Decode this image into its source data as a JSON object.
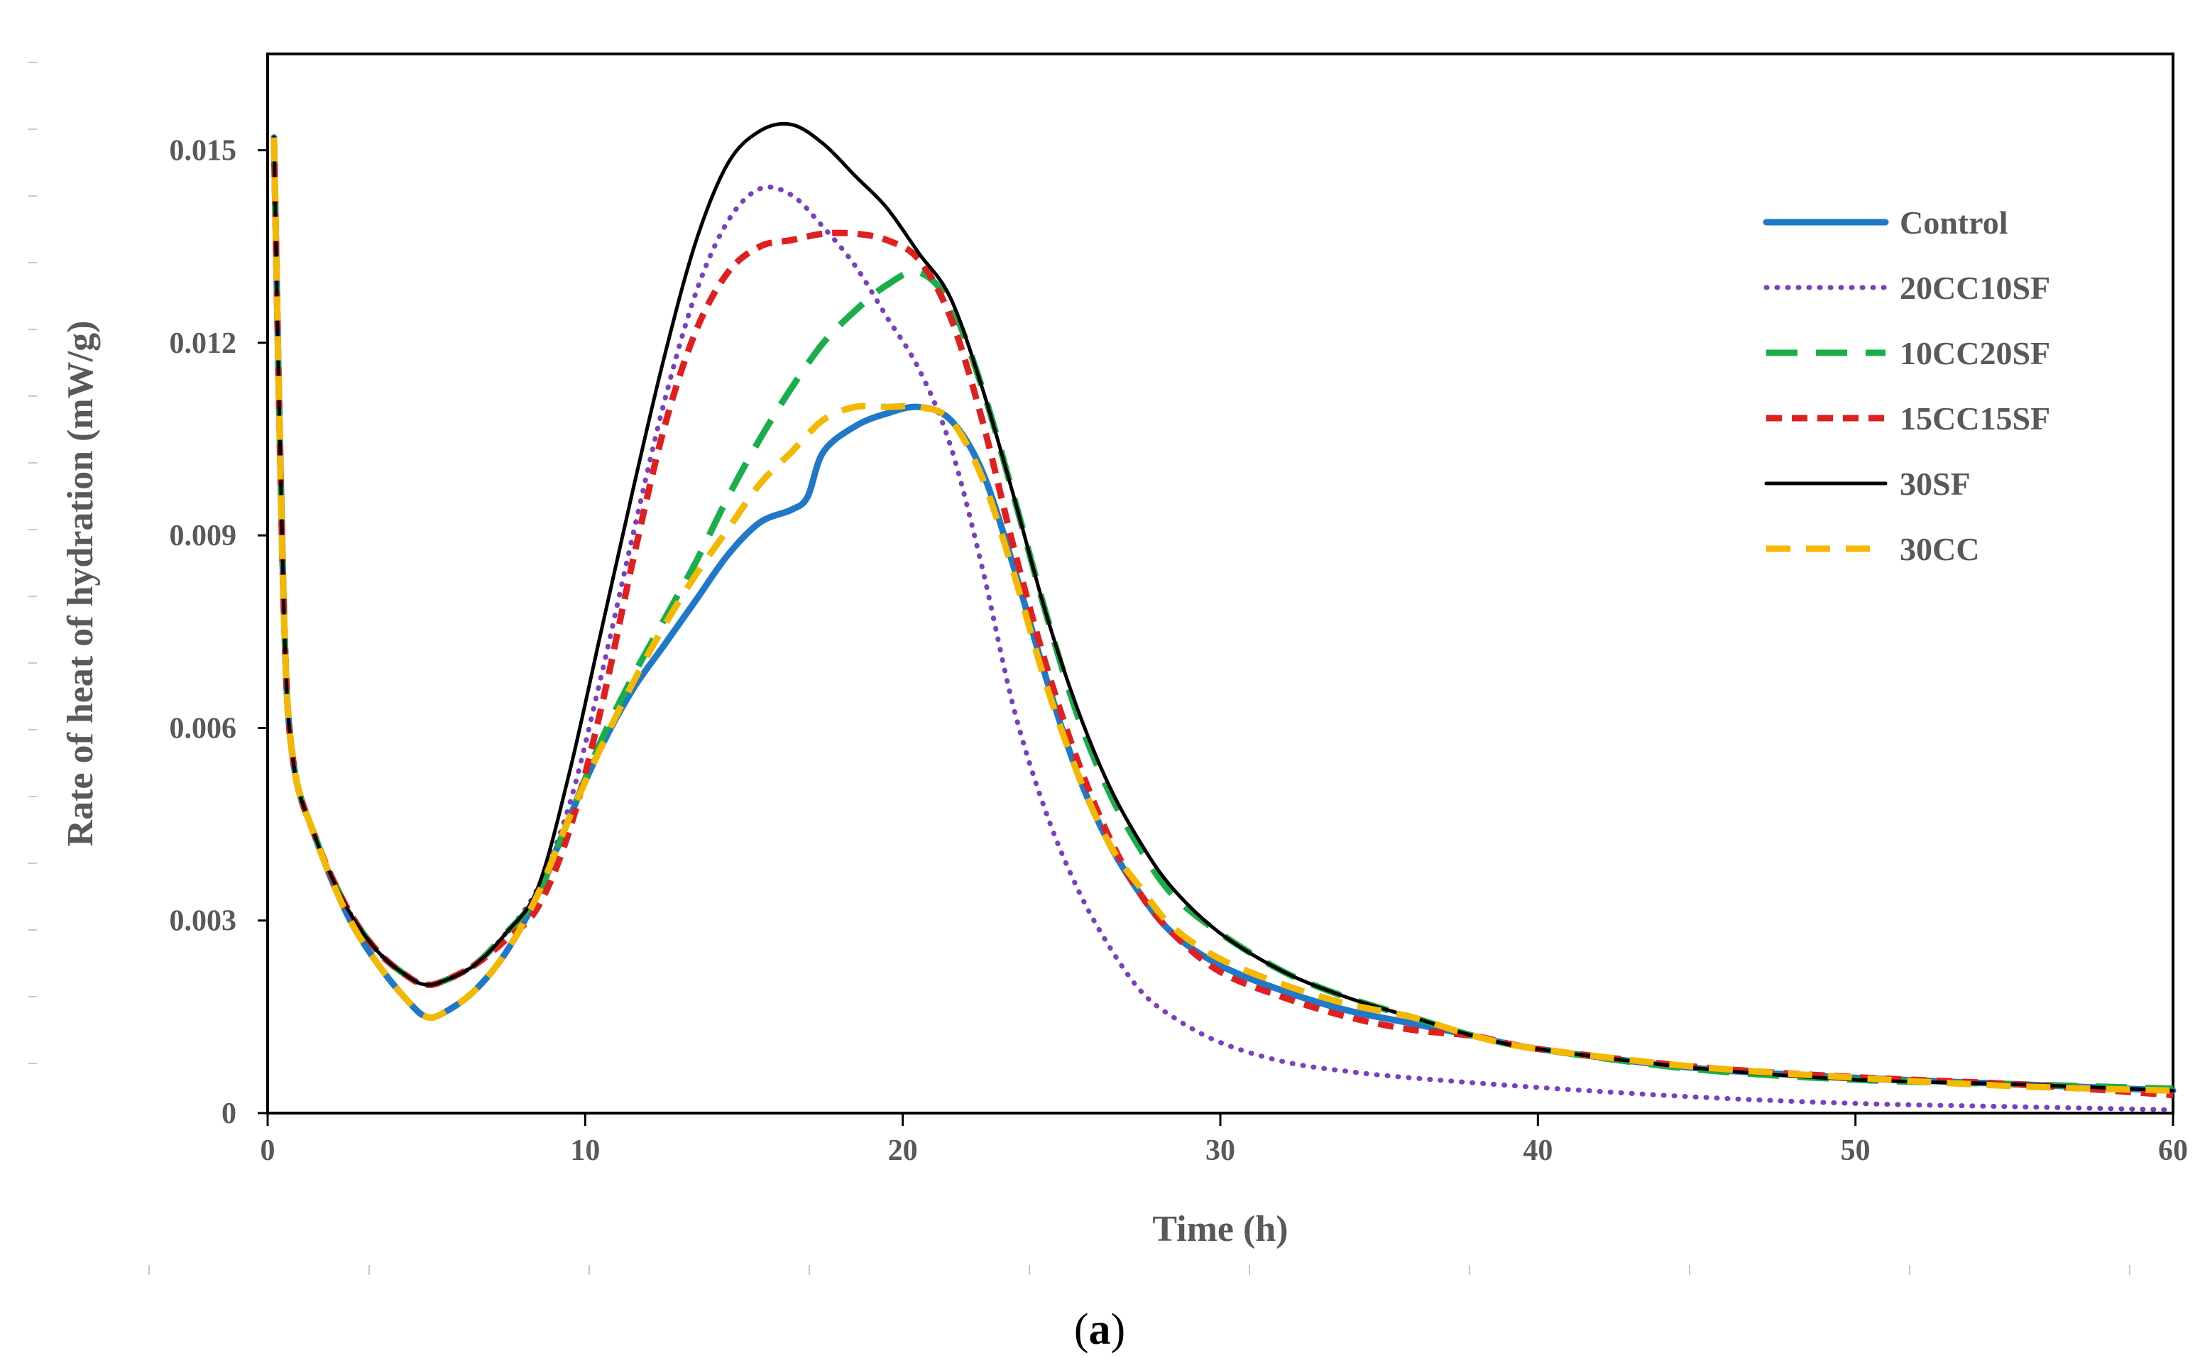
{
  "chart_data": {
    "type": "line",
    "title": "",
    "xlabel": "Time (h)",
    "ylabel": "Rate of heat of hydration (mW/g)",
    "xlim": [
      0,
      60
    ],
    "ylim": [
      0,
      0.0165
    ],
    "xticks": [
      "0",
      "10",
      "20",
      "30",
      "40",
      "50",
      "60"
    ],
    "yticks": [
      "0",
      "0.003",
      "0.006",
      "0.009",
      "0.012",
      "0.015"
    ],
    "caption": "(a)",
    "caption_parts": {
      "open": "(",
      "letter": "a",
      "close": ")"
    },
    "legend_position": "top-right",
    "grid": false,
    "series": [
      {
        "name": "Control",
        "color": "#1F78C8",
        "style": "solid-thick",
        "points": [
          [
            0.2,
            0.0152
          ],
          [
            0.5,
            0.008
          ],
          [
            0.8,
            0.0055
          ],
          [
            1.5,
            0.0043
          ],
          [
            2.5,
            0.0031
          ],
          [
            3.5,
            0.0023
          ],
          [
            4.5,
            0.0017
          ],
          [
            5,
            0.0015
          ],
          [
            5.5,
            0.00155
          ],
          [
            6.5,
            0.0019
          ],
          [
            7.5,
            0.0025
          ],
          [
            8.5,
            0.0034
          ],
          [
            9.5,
            0.0046
          ],
          [
            10.5,
            0.0057
          ],
          [
            11.5,
            0.0066
          ],
          [
            12.5,
            0.0073
          ],
          [
            13.5,
            0.008
          ],
          [
            14.5,
            0.0087
          ],
          [
            15.5,
            0.0092
          ],
          [
            16.5,
            0.0094
          ],
          [
            17,
            0.0096
          ],
          [
            17.5,
            0.0103
          ],
          [
            18.5,
            0.0107
          ],
          [
            19.5,
            0.0109
          ],
          [
            20.5,
            0.011
          ],
          [
            21.5,
            0.0108
          ],
          [
            22.5,
            0.01
          ],
          [
            23.5,
            0.0085
          ],
          [
            24.5,
            0.0068
          ],
          [
            25.5,
            0.0053
          ],
          [
            26.5,
            0.0042
          ],
          [
            27.5,
            0.0034
          ],
          [
            28.5,
            0.0028
          ],
          [
            30,
            0.0023
          ],
          [
            32,
            0.0019
          ],
          [
            34,
            0.0016
          ],
          [
            36,
            0.0014
          ],
          [
            38,
            0.0012
          ],
          [
            40,
            0.001
          ],
          [
            45,
            0.0007
          ],
          [
            50,
            0.00055
          ],
          [
            55,
            0.00045
          ],
          [
            60,
            0.00035
          ]
        ]
      },
      {
        "name": "20CC10SF",
        "color": "#7B3FBF",
        "style": "dotted",
        "points": [
          [
            0.2,
            0.0152
          ],
          [
            0.5,
            0.008
          ],
          [
            0.8,
            0.0055
          ],
          [
            1.5,
            0.0043
          ],
          [
            2.5,
            0.0032
          ],
          [
            3.5,
            0.0025
          ],
          [
            4.5,
            0.0021
          ],
          [
            5,
            0.002
          ],
          [
            5.5,
            0.00205
          ],
          [
            6.5,
            0.0023
          ],
          [
            7.5,
            0.0028
          ],
          [
            8.5,
            0.0035
          ],
          [
            9.5,
            0.0048
          ],
          [
            10.5,
            0.0068
          ],
          [
            11.5,
            0.009
          ],
          [
            12.5,
            0.0111
          ],
          [
            13.5,
            0.0128
          ],
          [
            14.5,
            0.0139
          ],
          [
            15.5,
            0.0144
          ],
          [
            16.5,
            0.0143
          ],
          [
            17.5,
            0.0138
          ],
          [
            18.5,
            0.0132
          ],
          [
            19.5,
            0.0124
          ],
          [
            20.5,
            0.0116
          ],
          [
            21.5,
            0.0104
          ],
          [
            22.5,
            0.0085
          ],
          [
            23.5,
            0.0063
          ],
          [
            24.5,
            0.0047
          ],
          [
            25.5,
            0.0035
          ],
          [
            26.5,
            0.0026
          ],
          [
            27.5,
            0.0019
          ],
          [
            28.5,
            0.0015
          ],
          [
            30,
            0.0011
          ],
          [
            32,
            0.0008
          ],
          [
            34,
            0.00065
          ],
          [
            36,
            0.00055
          ],
          [
            40,
            0.0004
          ],
          [
            45,
            0.00025
          ],
          [
            50,
            0.00015
          ],
          [
            55,
            0.0001
          ],
          [
            60,
            5e-05
          ]
        ]
      },
      {
        "name": "10CC20SF",
        "color": "#1AAE4B",
        "style": "long-dash",
        "points": [
          [
            0.2,
            0.0152
          ],
          [
            0.5,
            0.008
          ],
          [
            0.8,
            0.0055
          ],
          [
            1.5,
            0.0043
          ],
          [
            2.5,
            0.0032
          ],
          [
            3.5,
            0.0025
          ],
          [
            4.5,
            0.0021
          ],
          [
            5,
            0.002
          ],
          [
            5.5,
            0.00205
          ],
          [
            6.5,
            0.0023
          ],
          [
            7.5,
            0.0028
          ],
          [
            8.5,
            0.0034
          ],
          [
            9.5,
            0.0046
          ],
          [
            10.5,
            0.0058
          ],
          [
            11.5,
            0.0068
          ],
          [
            12.5,
            0.0077
          ],
          [
            13.5,
            0.0086
          ],
          [
            14.5,
            0.0096
          ],
          [
            15.5,
            0.0105
          ],
          [
            16.5,
            0.0113
          ],
          [
            17.5,
            0.012
          ],
          [
            18.5,
            0.0125
          ],
          [
            19.5,
            0.0129
          ],
          [
            20.5,
            0.0131
          ],
          [
            21.5,
            0.0126
          ],
          [
            22.5,
            0.0113
          ],
          [
            23.5,
            0.0096
          ],
          [
            24.5,
            0.0078
          ],
          [
            25.5,
            0.0062
          ],
          [
            26.5,
            0.005
          ],
          [
            27.5,
            0.0041
          ],
          [
            28.5,
            0.0034
          ],
          [
            30,
            0.0028
          ],
          [
            32,
            0.0022
          ],
          [
            34,
            0.0018
          ],
          [
            36,
            0.0015
          ],
          [
            38,
            0.0012
          ],
          [
            40,
            0.001
          ],
          [
            45,
            0.00068
          ],
          [
            50,
            0.00052
          ],
          [
            55,
            0.00045
          ],
          [
            60,
            0.00038
          ]
        ]
      },
      {
        "name": "15CC15SF",
        "color": "#E02020",
        "style": "short-dash",
        "points": [
          [
            0.2,
            0.0152
          ],
          [
            0.5,
            0.008
          ],
          [
            0.8,
            0.0055
          ],
          [
            1.5,
            0.0043
          ],
          [
            2.5,
            0.0032
          ],
          [
            3.5,
            0.0025
          ],
          [
            4.5,
            0.0021
          ],
          [
            5,
            0.002
          ],
          [
            5.5,
            0.00205
          ],
          [
            6.5,
            0.0023
          ],
          [
            7.5,
            0.0027
          ],
          [
            8.5,
            0.0032
          ],
          [
            9.5,
            0.0044
          ],
          [
            10.5,
            0.0063
          ],
          [
            11.5,
            0.0086
          ],
          [
            12.5,
            0.0107
          ],
          [
            13.5,
            0.0122
          ],
          [
            14.5,
            0.0131
          ],
          [
            15.5,
            0.0135
          ],
          [
            16.5,
            0.0136
          ],
          [
            17.5,
            0.0137
          ],
          [
            18.5,
            0.0137
          ],
          [
            19.5,
            0.0136
          ],
          [
            20.5,
            0.0133
          ],
          [
            21.5,
            0.0124
          ],
          [
            22.5,
            0.0108
          ],
          [
            23.5,
            0.0088
          ],
          [
            24.5,
            0.007
          ],
          [
            25.5,
            0.0055
          ],
          [
            26.5,
            0.0043
          ],
          [
            27.5,
            0.0034
          ],
          [
            28.5,
            0.0028
          ],
          [
            30,
            0.0022
          ],
          [
            32,
            0.0018
          ],
          [
            34,
            0.0015
          ],
          [
            36,
            0.0013
          ],
          [
            38,
            0.0012
          ],
          [
            40,
            0.001
          ],
          [
            45,
            0.00072
          ],
          [
            50,
            0.00056
          ],
          [
            55,
            0.00045
          ],
          [
            60,
            0.00028
          ]
        ]
      },
      {
        "name": "30SF",
        "color": "#000000",
        "style": "solid-thin",
        "points": [
          [
            0.2,
            0.0152
          ],
          [
            0.5,
            0.008
          ],
          [
            0.8,
            0.0055
          ],
          [
            1.5,
            0.0043
          ],
          [
            2.5,
            0.0032
          ],
          [
            3.5,
            0.0025
          ],
          [
            4.5,
            0.0021
          ],
          [
            5,
            0.002
          ],
          [
            5.5,
            0.00205
          ],
          [
            6.5,
            0.0023
          ],
          [
            7.5,
            0.0028
          ],
          [
            8.5,
            0.0035
          ],
          [
            9.5,
            0.0053
          ],
          [
            10.5,
            0.0075
          ],
          [
            11.5,
            0.0097
          ],
          [
            12.5,
            0.0118
          ],
          [
            13.5,
            0.0136
          ],
          [
            14.5,
            0.0148
          ],
          [
            15.5,
            0.0153
          ],
          [
            16.5,
            0.0154
          ],
          [
            17.5,
            0.0151
          ],
          [
            18.5,
            0.0146
          ],
          [
            19.5,
            0.0141
          ],
          [
            20.5,
            0.0134
          ],
          [
            21.5,
            0.0127
          ],
          [
            22.5,
            0.0113
          ],
          [
            23.5,
            0.0096
          ],
          [
            24.5,
            0.0078
          ],
          [
            25.5,
            0.0063
          ],
          [
            26.5,
            0.0051
          ],
          [
            27.5,
            0.0042
          ],
          [
            28.5,
            0.0035
          ],
          [
            30,
            0.0028
          ],
          [
            32,
            0.0022
          ],
          [
            34,
            0.0018
          ],
          [
            36,
            0.0015
          ],
          [
            38,
            0.0012
          ],
          [
            40,
            0.001
          ],
          [
            45,
            0.0007
          ],
          [
            50,
            0.00052
          ],
          [
            55,
            0.00045
          ],
          [
            60,
            0.00035
          ]
        ]
      },
      {
        "name": "30CC",
        "color": "#F5B800",
        "style": "dash",
        "points": [
          [
            0.2,
            0.0152
          ],
          [
            0.5,
            0.008
          ],
          [
            0.8,
            0.0055
          ],
          [
            1.5,
            0.0043
          ],
          [
            2.5,
            0.0031
          ],
          [
            3.5,
            0.0023
          ],
          [
            4.5,
            0.0017
          ],
          [
            5,
            0.0015
          ],
          [
            5.5,
            0.00155
          ],
          [
            6.5,
            0.0019
          ],
          [
            7.5,
            0.0025
          ],
          [
            8.5,
            0.0034
          ],
          [
            9.5,
            0.0046
          ],
          [
            10.5,
            0.0057
          ],
          [
            11.5,
            0.0067
          ],
          [
            12.5,
            0.0076
          ],
          [
            13.5,
            0.0084
          ],
          [
            14.5,
            0.0091
          ],
          [
            15.5,
            0.0098
          ],
          [
            16.5,
            0.0103
          ],
          [
            17.5,
            0.0108
          ],
          [
            18.5,
            0.011
          ],
          [
            19.5,
            0.011
          ],
          [
            20.5,
            0.011
          ],
          [
            21.5,
            0.0108
          ],
          [
            22.5,
            0.0099
          ],
          [
            23.5,
            0.0084
          ],
          [
            24.5,
            0.0067
          ],
          [
            25.5,
            0.0053
          ],
          [
            26.5,
            0.0042
          ],
          [
            27.5,
            0.0035
          ],
          [
            28.5,
            0.0029
          ],
          [
            30,
            0.0024
          ],
          [
            32,
            0.002
          ],
          [
            34,
            0.0017
          ],
          [
            36,
            0.0015
          ],
          [
            38,
            0.0012
          ],
          [
            40,
            0.001
          ],
          [
            45,
            0.00072
          ],
          [
            50,
            0.00055
          ],
          [
            55,
            0.00042
          ],
          [
            60,
            0.00035
          ]
        ]
      }
    ]
  }
}
